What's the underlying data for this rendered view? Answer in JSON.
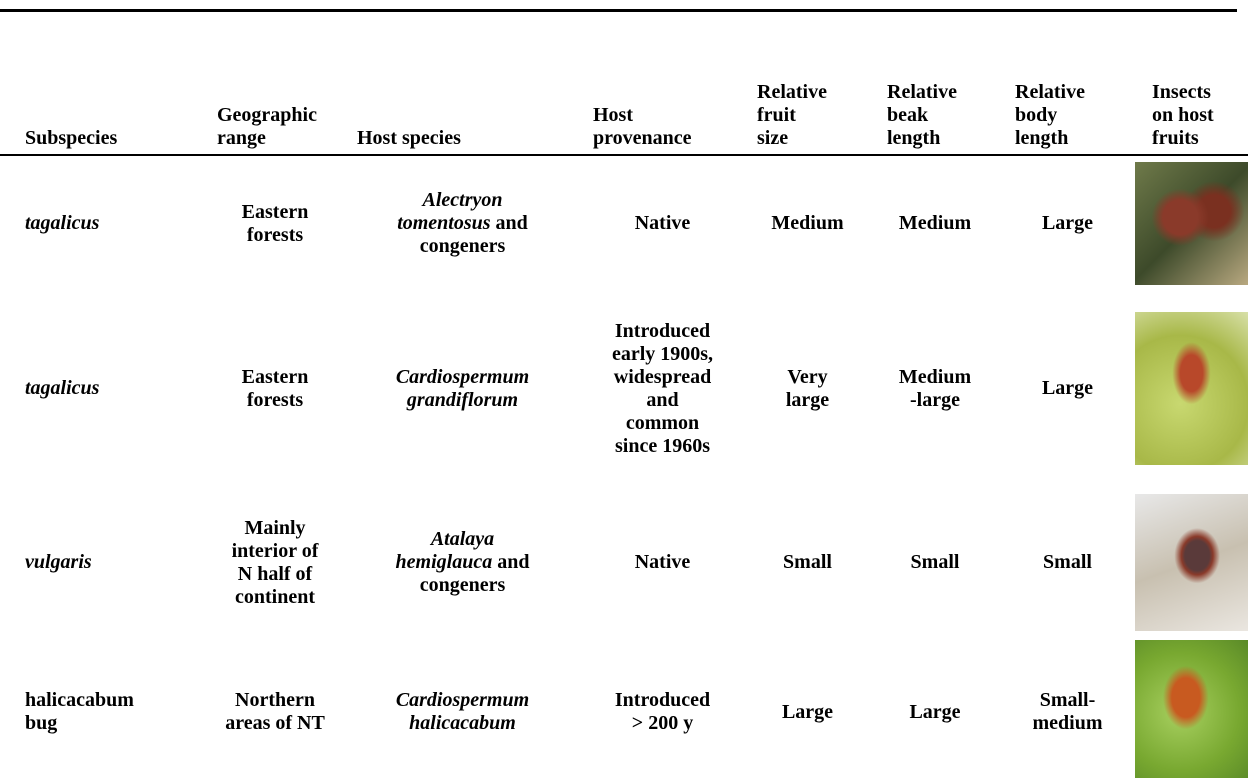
{
  "header": {
    "columns": [
      "Subspecies",
      "Geographic\nrange",
      "Host species",
      "Host\nprovenance",
      "Relative\nfruit\nsize",
      "Relative\nbeak\nlength",
      "Relative\nbody\nlength",
      "Insects\non host\nfruits"
    ]
  },
  "table": {
    "rows": [
      {
        "subspecies": "tagalicus",
        "range": "Eastern\nforests",
        "host_species": {
          "name": "Alectryon\ntomentosus",
          "rest": "and\ncongeners"
        },
        "provenance": "Native",
        "fruit": "Medium",
        "beak": "Medium",
        "body": "Large"
      },
      {
        "subspecies": "tagalicus",
        "range": "Eastern\nforests",
        "host_species": {
          "name": "Cardiospermum\ngrandiflorum"
        },
        "provenance": "Introduced\nearly 1900s,\nwidespread\nand\ncommon\nsince 1960s",
        "fruit": "Very\nlarge",
        "beak": "Medium\n-large",
        "body": "Large"
      },
      {
        "subspecies": "vulgaris",
        "range": "Mainly\ninterior of\nN half of\ncontinent",
        "host_species": {
          "name": "Atalaya\nhemiglauca",
          "rest": "and\ncongeners"
        },
        "provenance": "Native",
        "fruit": "Small",
        "beak": "Small",
        "body": "Small"
      },
      {
        "subspecies": "halicacabum\nbug",
        "range": "Northern\nareas of NT",
        "host_species": {
          "name": "Cardiospermum\nhalicacabum"
        },
        "provenance": "Introduced\n> 200 y",
        "fruit": "Large",
        "beak": "Large",
        "body": "Small-\nmedium"
      }
    ]
  }
}
